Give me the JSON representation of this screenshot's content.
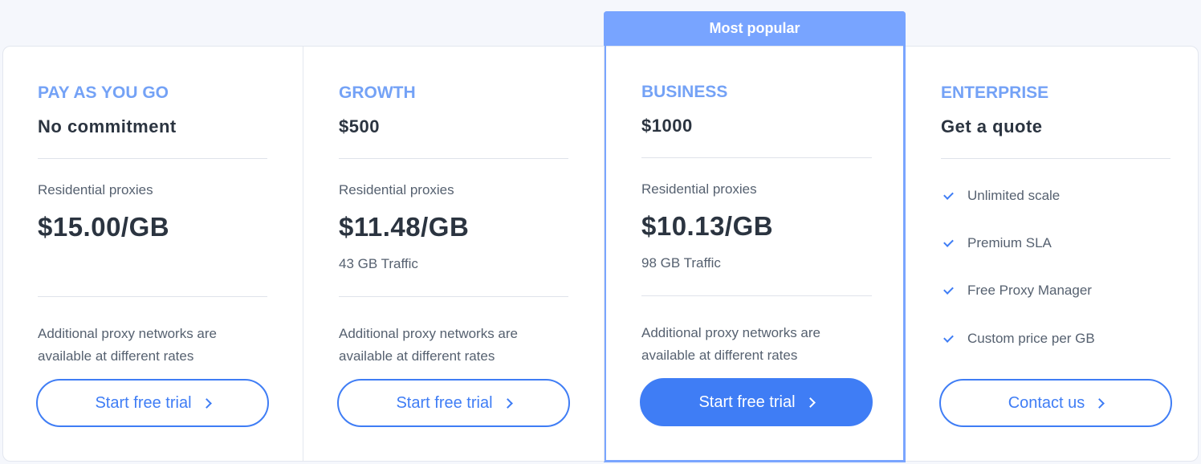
{
  "badge": "Most popular",
  "plans": [
    {
      "tier": "PAY AS YOU GO",
      "subtitle": "No commitment",
      "label": "Residential proxies",
      "price": "$15.00/GB",
      "traffic": "",
      "note": [
        "Additional proxy networks are",
        "available at different rates"
      ],
      "button": "Start free trial"
    },
    {
      "tier": "GROWTH",
      "subtitle": "$500",
      "label": "Residential proxies",
      "price": "$11.48/GB",
      "traffic": "43 GB Traffic",
      "note": [
        "Additional proxy networks are",
        "available at different rates"
      ],
      "button": "Start free trial"
    },
    {
      "tier": "BUSINESS",
      "subtitle": "$1000",
      "label": "Residential proxies",
      "price": "$10.13/GB",
      "traffic": "98 GB Traffic",
      "note": [
        "Additional proxy networks are",
        "available at different rates"
      ],
      "button": "Start free trial"
    },
    {
      "tier": "ENTERPRISE",
      "subtitle": "Get a quote",
      "features": [
        "Unlimited scale",
        "Premium SLA",
        "Free Proxy Manager",
        "Custom price per GB"
      ],
      "button": "Contact us"
    }
  ],
  "colors": {
    "accent": "#3f7df5",
    "tier": "#74a2f6",
    "highlight": "#78a4ff"
  }
}
